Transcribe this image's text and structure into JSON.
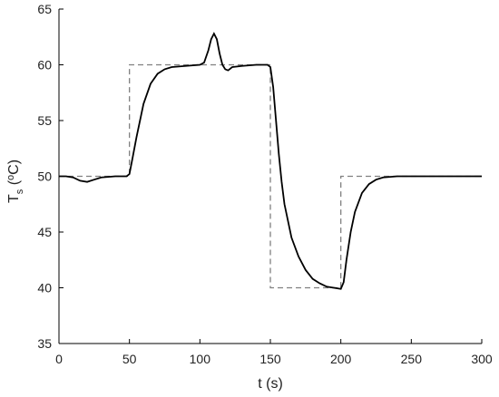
{
  "chart_data": {
    "type": "line",
    "xlabel": "t (s)",
    "ylabel": [
      "T",
      "s",
      " (",
      "o",
      "C)"
    ],
    "xlim": [
      0,
      300
    ],
    "xticks": [
      0,
      50,
      100,
      150,
      200,
      250,
      300
    ],
    "ylim": [
      35,
      65
    ],
    "yticks": [
      35,
      40,
      45,
      50,
      55,
      60,
      65
    ],
    "grid": false,
    "series": [
      {
        "color": "#808080",
        "linestyle": "dashed",
        "x": [
          0,
          50,
          50,
          150,
          150,
          200,
          200,
          300
        ],
        "values": [
          50,
          50,
          60,
          60,
          40,
          40,
          50,
          50
        ]
      },
      {
        "color": "#000000",
        "linestyle": "solid",
        "x": [
          0,
          5,
          10,
          15,
          20,
          25,
          30,
          40,
          48,
          50,
          52,
          55,
          60,
          65,
          70,
          75,
          80,
          90,
          100,
          103,
          106,
          108,
          110,
          112,
          114,
          116,
          118,
          120,
          123,
          130,
          140,
          148,
          150,
          152,
          154,
          156,
          158,
          160,
          165,
          170,
          175,
          180,
          185,
          190,
          195,
          200,
          202,
          204,
          207,
          210,
          215,
          220,
          225,
          230,
          240,
          250,
          300
        ],
        "values": [
          50,
          50,
          49.9,
          49.6,
          49.5,
          49.7,
          49.9,
          50,
          50,
          50.2,
          51.5,
          53.5,
          56.5,
          58.3,
          59.2,
          59.6,
          59.8,
          59.9,
          60,
          60.2,
          61.3,
          62.3,
          62.8,
          62.3,
          61,
          60,
          59.6,
          59.5,
          59.8,
          59.9,
          60,
          60,
          59.8,
          58,
          55,
          52,
          49.5,
          47.5,
          44.5,
          42.8,
          41.6,
          40.8,
          40.4,
          40.1,
          40,
          39.9,
          40.5,
          42.5,
          45,
          46.8,
          48.5,
          49.3,
          49.7,
          49.9,
          50,
          50,
          50
        ]
      }
    ]
  }
}
